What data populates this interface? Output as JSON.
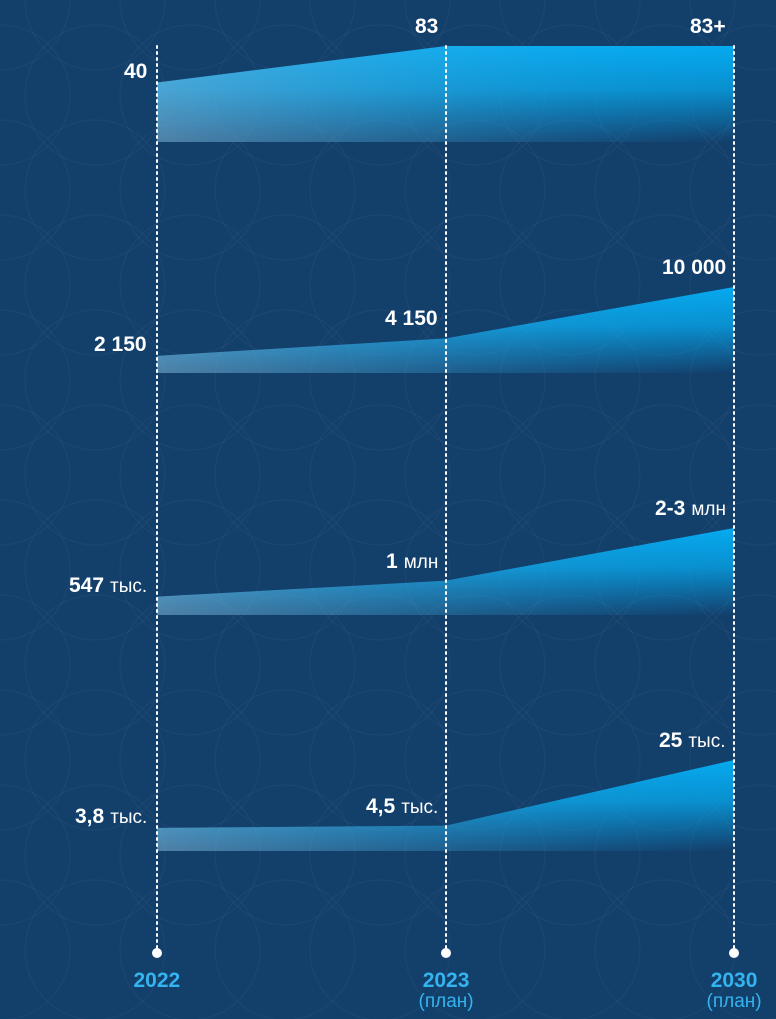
{
  "chart_data": {
    "type": "area",
    "x_categories": [
      {
        "year": "2022",
        "note": ""
      },
      {
        "year": "2023",
        "note": "(план)"
      },
      {
        "year": "2030",
        "note": "(план)"
      }
    ],
    "series": [
      {
        "values": [
          40,
          83,
          83
        ],
        "labels": [
          {
            "num": "40",
            "unit": ""
          },
          {
            "num": "83",
            "unit": ""
          },
          {
            "num": "83+",
            "unit": ""
          }
        ]
      },
      {
        "values": [
          2150,
          4150,
          10000
        ],
        "labels": [
          {
            "num": "2 150",
            "unit": ""
          },
          {
            "num": "4 150",
            "unit": ""
          },
          {
            "num": "10 000",
            "unit": ""
          }
        ]
      },
      {
        "values": [
          547000,
          1000000,
          2500000
        ],
        "labels": [
          {
            "num": "547",
            "unit": "тыс."
          },
          {
            "num": "1",
            "unit": "млн"
          },
          {
            "num": "2-3",
            "unit": "млн"
          }
        ]
      },
      {
        "values": [
          3800,
          4500,
          25000
        ],
        "labels": [
          {
            "num": "3,8",
            "unit": "тыс."
          },
          {
            "num": "4,5",
            "unit": "тыс."
          },
          {
            "num": "25",
            "unit": "тыс."
          }
        ]
      }
    ],
    "grid": false,
    "legend": "none",
    "colors": {
      "background": "#133f6b",
      "area": "#06aaf0",
      "year_text": "#34b4ee",
      "value_text": "#ffffff",
      "guide": "#ffffff"
    }
  }
}
